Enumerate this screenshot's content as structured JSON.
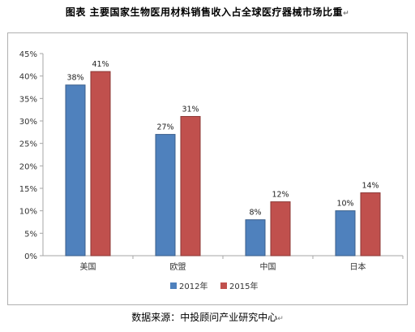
{
  "title": "图表    主要国家生物医用材料销售收入占全球医疗器械市场比重",
  "source": "数据来源：中投顾问产业研究中心",
  "return_mark": "↵",
  "chart_data": {
    "type": "bar",
    "categories": [
      "美国",
      "欧盟",
      "中国",
      "日本"
    ],
    "series": [
      {
        "name": "2012年",
        "values": [
          38,
          27,
          8,
          10
        ],
        "labels": [
          "38%",
          "27%",
          "8%",
          "10%"
        ],
        "color": "#4f81bd"
      },
      {
        "name": "2015年",
        "values": [
          41,
          31,
          12,
          14
        ],
        "labels": [
          "41%",
          "31%",
          "12%",
          "14%"
        ],
        "color": "#c0504d"
      }
    ],
    "yticks": [
      "0%",
      "5%",
      "10%",
      "15%",
      "20%",
      "25%",
      "30%",
      "35%",
      "40%",
      "45%"
    ],
    "ylim": [
      0,
      45
    ],
    "grid": false,
    "legend_position": "bottom"
  }
}
